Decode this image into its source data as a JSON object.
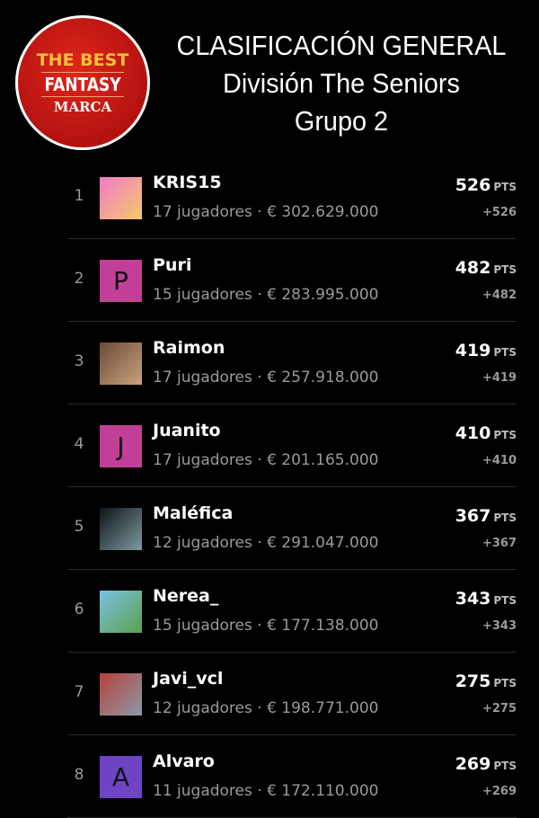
{
  "logo": {
    "line1": "THE BEST",
    "line2": "FANTASY",
    "line3": "MARCA"
  },
  "header": {
    "title": "CLASIFICACIÓN GENERAL",
    "subtitle": "División The Seniors",
    "group": "Grupo 2"
  },
  "pts_label": "PTS",
  "rows": [
    {
      "rank": "1",
      "name": "KRIS15",
      "meta": "17 jugadores · € 302.629.000",
      "points": "526",
      "delta": "+526",
      "avatar": {
        "type": "image",
        "colors": [
          "#f07ac8",
          "#f7c96a"
        ]
      }
    },
    {
      "rank": "2",
      "name": "Puri",
      "meta": "15 jugadores · € 283.995.000",
      "points": "482",
      "delta": "+482",
      "avatar": {
        "type": "letter",
        "letter": "P",
        "color": "#c23f98"
      }
    },
    {
      "rank": "3",
      "name": "Raimon",
      "meta": "17 jugadores · € 257.918.000",
      "points": "419",
      "delta": "+419",
      "avatar": {
        "type": "image",
        "colors": [
          "#6b4a35",
          "#c9a27e"
        ]
      }
    },
    {
      "rank": "4",
      "name": "Juanito",
      "meta": "17 jugadores · € 201.165.000",
      "points": "410",
      "delta": "+410",
      "avatar": {
        "type": "letter",
        "letter": "J",
        "color": "#c23f98"
      }
    },
    {
      "rank": "5",
      "name": "Maléfica",
      "meta": "12 jugadores · € 291.047.000",
      "points": "367",
      "delta": "+367",
      "avatar": {
        "type": "image",
        "colors": [
          "#0d1418",
          "#7f9aa0"
        ]
      }
    },
    {
      "rank": "6",
      "name": "Nerea_",
      "meta": "15 jugadores · € 177.138.000",
      "points": "343",
      "delta": "+343",
      "avatar": {
        "type": "image",
        "colors": [
          "#7cc2e6",
          "#5aa04a"
        ]
      }
    },
    {
      "rank": "7",
      "name": "Javi_vcl",
      "meta": "12 jugadores · € 198.771.000",
      "points": "275",
      "delta": "+275",
      "avatar": {
        "type": "image",
        "colors": [
          "#b8403a",
          "#8a9aa8"
        ]
      }
    },
    {
      "rank": "8",
      "name": "Alvaro",
      "meta": "11 jugadores · € 172.110.000",
      "points": "269",
      "delta": "+269",
      "avatar": {
        "type": "letter",
        "letter": "A",
        "color": "#6e44c4"
      }
    }
  ]
}
